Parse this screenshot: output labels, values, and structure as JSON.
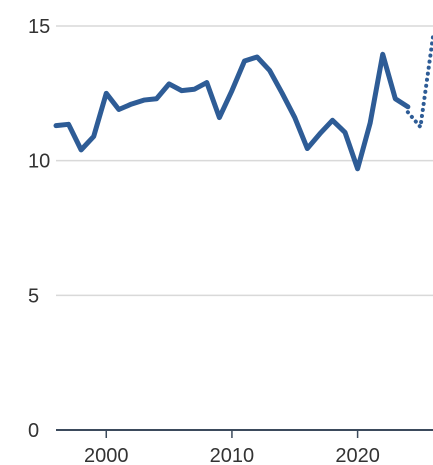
{
  "chart_data": {
    "type": "line",
    "title": "",
    "xlabel": "",
    "ylabel": "",
    "xlim": [
      1996,
      2026
    ],
    "ylim": [
      0,
      15
    ],
    "grid": true,
    "y_ticks": [
      {
        "value": 0,
        "label": "0"
      },
      {
        "value": 5,
        "label": "5"
      },
      {
        "value": 10,
        "label": "10"
      },
      {
        "value": 15,
        "label": "15"
      }
    ],
    "x_ticks": [
      {
        "value": 2000,
        "label": "2000"
      },
      {
        "value": 2010,
        "label": "2010"
      },
      {
        "value": 2020,
        "label": "2020"
      }
    ],
    "series": [
      {
        "style": "solid",
        "color": "#2e5c96",
        "x": [
          1996,
          1997,
          1998,
          1999,
          2000,
          2001,
          2002,
          2003,
          2004,
          2005,
          2006,
          2007,
          2008,
          2009,
          2010,
          2011,
          2012,
          2013,
          2014,
          2015,
          2016,
          2017,
          2018,
          2019,
          2020,
          2021,
          2022,
          2023,
          2024
        ],
        "y": [
          11.3,
          11.35,
          10.4,
          10.9,
          12.5,
          11.9,
          12.1,
          12.25,
          12.3,
          12.85,
          12.6,
          12.65,
          12.9,
          11.6,
          12.6,
          13.7,
          13.85,
          13.35,
          12.5,
          11.6,
          10.45,
          11.0,
          11.5,
          11.05,
          9.7,
          11.4,
          13.95,
          12.3,
          12.0
        ]
      },
      {
        "style": "dotted",
        "color": "#2e5c96",
        "x": [
          2024,
          2025,
          2026
        ],
        "y": [
          11.8,
          11.25,
          14.6
        ]
      }
    ]
  }
}
